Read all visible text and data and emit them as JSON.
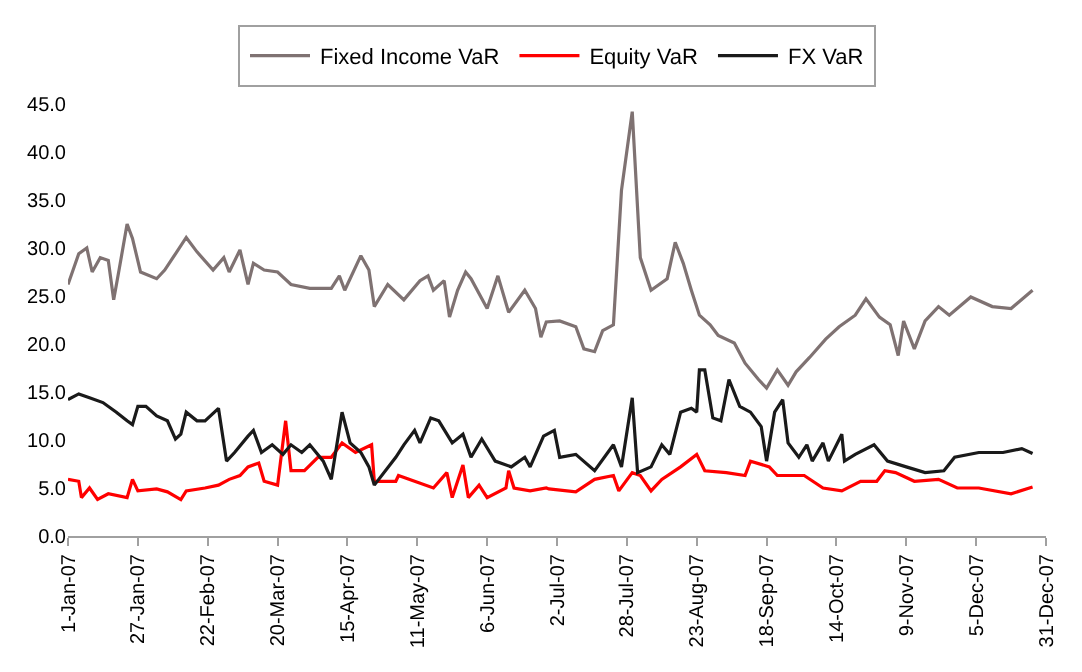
{
  "chart_data": {
    "type": "line",
    "legend": "top",
    "marker": "none",
    "line_style": "solid",
    "xlim": [
      "2007-01-01",
      "2007-12-31"
    ],
    "xticks": [
      {
        "value": "2007-01-01",
        "label": "1-Jan-07"
      },
      {
        "value": "2007-01-27",
        "label": "27-Jan-07"
      },
      {
        "value": "2007-02-22",
        "label": "22-Feb-07"
      },
      {
        "value": "2007-03-20",
        "label": "20-Mar-07"
      },
      {
        "value": "2007-04-15",
        "label": "15-Apr-07"
      },
      {
        "value": "2007-05-11",
        "label": "11-May-07"
      },
      {
        "value": "2007-06-06",
        "label": "6-Jun-07"
      },
      {
        "value": "2007-07-02",
        "label": "2-Jul-07"
      },
      {
        "value": "2007-07-28",
        "label": "28-Jul-07"
      },
      {
        "value": "2007-08-23",
        "label": "23-Aug-07"
      },
      {
        "value": "2007-09-18",
        "label": "18-Sep-07"
      },
      {
        "value": "2007-10-14",
        "label": "14-Oct-07"
      },
      {
        "value": "2007-11-09",
        "label": "9-Nov-07"
      },
      {
        "value": "2007-12-05",
        "label": "5-Dec-07"
      },
      {
        "value": "2007-12-31",
        "label": "31-Dec-07"
      }
    ],
    "ylim": [
      0,
      45
    ],
    "yticks": [
      {
        "value": 0,
        "label": "0.0"
      },
      {
        "value": 5,
        "label": "5.0"
      },
      {
        "value": 10,
        "label": "10.0"
      },
      {
        "value": 15,
        "label": "15.0"
      },
      {
        "value": 20,
        "label": "20.0"
      },
      {
        "value": 25,
        "label": "25.0"
      },
      {
        "value": 30,
        "label": "30.0"
      },
      {
        "value": 35,
        "label": "35.0"
      },
      {
        "value": 40,
        "label": "40.0"
      },
      {
        "value": 45,
        "label": "45.0"
      }
    ],
    "series": [
      {
        "name": "Fixed Income VaR",
        "color": "#7f7272",
        "x": [
          "2007-01-01",
          "2007-01-05",
          "2007-01-08",
          "2007-01-10",
          "2007-01-13",
          "2007-01-16",
          "2007-01-18",
          "2007-01-20",
          "2007-01-23",
          "2007-01-25",
          "2007-01-28",
          "2007-02-03",
          "2007-02-06",
          "2007-02-10",
          "2007-02-14",
          "2007-02-18",
          "2007-02-24",
          "2007-02-28",
          "2007-03-02",
          "2007-03-06",
          "2007-03-09",
          "2007-03-11",
          "2007-03-15",
          "2007-03-20",
          "2007-03-25",
          "2007-04-01",
          "2007-04-09",
          "2007-04-12",
          "2007-04-14",
          "2007-04-20",
          "2007-04-23",
          "2007-04-25",
          "2007-04-30",
          "2007-05-06",
          "2007-05-12",
          "2007-05-15",
          "2007-05-17",
          "2007-05-21",
          "2007-05-23",
          "2007-05-26",
          "2007-05-29",
          "2007-05-31",
          "2007-06-06",
          "2007-06-10",
          "2007-06-14",
          "2007-06-20",
          "2007-06-24",
          "2007-06-26",
          "2007-06-28",
          "2007-07-03",
          "2007-07-09",
          "2007-07-12",
          "2007-07-16",
          "2007-07-19",
          "2007-07-23",
          "2007-07-26",
          "2007-07-30",
          "2007-08-02",
          "2007-08-06",
          "2007-08-12",
          "2007-08-15",
          "2007-08-18",
          "2007-08-21",
          "2007-08-24",
          "2007-08-28",
          "2007-08-31",
          "2007-09-06",
          "2007-09-10",
          "2007-09-15",
          "2007-09-18",
          "2007-09-22",
          "2007-09-26",
          "2007-09-29",
          "2007-10-04",
          "2007-10-10",
          "2007-10-15",
          "2007-10-21",
          "2007-10-25",
          "2007-10-30",
          "2007-11-03",
          "2007-11-06",
          "2007-11-08",
          "2007-11-12",
          "2007-11-16",
          "2007-11-21",
          "2007-11-25",
          "2007-12-03",
          "2007-12-11",
          "2007-12-18",
          "2007-12-26"
        ],
        "values": [
          26.2,
          29.4,
          30.0,
          27.5,
          29.0,
          28.7,
          24.6,
          27.7,
          32.5,
          31.0,
          27.5,
          26.8,
          27.7,
          29.4,
          31.1,
          29.6,
          27.7,
          29.0,
          27.5,
          29.8,
          26.2,
          28.4,
          27.7,
          27.5,
          26.2,
          25.8,
          25.8,
          27.1,
          25.6,
          29.2,
          27.7,
          23.9,
          26.2,
          24.6,
          26.6,
          27.1,
          25.6,
          26.6,
          22.8,
          25.6,
          27.5,
          26.8,
          23.7,
          27.1,
          23.3,
          25.6,
          23.7,
          20.7,
          22.3,
          22.4,
          21.8,
          19.5,
          19.2,
          21.4,
          22.0,
          36.0,
          44.2,
          29.0,
          25.6,
          26.8,
          30.6,
          28.4,
          25.6,
          23.0,
          22.0,
          20.9,
          20.1,
          18.0,
          16.3,
          15.4,
          17.3,
          15.7,
          17.1,
          18.6,
          20.5,
          21.8,
          23.0,
          24.7,
          22.8,
          22.0,
          18.8,
          22.4,
          19.5,
          22.4,
          23.9,
          23.0,
          24.9,
          23.9,
          23.7,
          25.6
        ]
      },
      {
        "name": "Equity VaR",
        "color": "#ff0000",
        "x": [
          "2007-01-01",
          "2007-01-05",
          "2007-01-06",
          "2007-01-09",
          "2007-01-12",
          "2007-01-16",
          "2007-01-23",
          "2007-01-25",
          "2007-01-27",
          "2007-02-03",
          "2007-02-07",
          "2007-02-12",
          "2007-02-14",
          "2007-02-21",
          "2007-02-26",
          "2007-03-02",
          "2007-03-06",
          "2007-03-09",
          "2007-03-13",
          "2007-03-15",
          "2007-03-20",
          "2007-03-23",
          "2007-03-25",
          "2007-03-30",
          "2007-04-04",
          "2007-04-09",
          "2007-04-13",
          "2007-04-18",
          "2007-04-24",
          "2007-04-25",
          "2007-05-03",
          "2007-05-04",
          "2007-05-10",
          "2007-05-17",
          "2007-05-22",
          "2007-05-24",
          "2007-05-28",
          "2007-05-30",
          "2007-06-03",
          "2007-06-06",
          "2007-06-13",
          "2007-06-14",
          "2007-06-16",
          "2007-06-22",
          "2007-06-28",
          "2007-06-29",
          "2007-07-09",
          "2007-07-16",
          "2007-07-23",
          "2007-07-25",
          "2007-07-30",
          "2007-08-02",
          "2007-08-06",
          "2007-08-10",
          "2007-08-17",
          "2007-08-23",
          "2007-08-26",
          "2007-09-03",
          "2007-09-10",
          "2007-09-12",
          "2007-09-19",
          "2007-09-22",
          "2007-10-02",
          "2007-10-09",
          "2007-10-16",
          "2007-10-23",
          "2007-10-29",
          "2007-11-01",
          "2007-11-05",
          "2007-11-12",
          "2007-11-21",
          "2007-11-28",
          "2007-12-06",
          "2007-12-18",
          "2007-12-26"
        ],
        "values": [
          5.9,
          5.7,
          4.0,
          5.0,
          3.8,
          4.4,
          4.0,
          5.9,
          4.7,
          4.9,
          4.6,
          3.8,
          4.7,
          5.0,
          5.3,
          5.9,
          6.3,
          7.2,
          7.6,
          5.7,
          5.3,
          12.0,
          6.8,
          6.8,
          8.2,
          8.2,
          9.7,
          8.7,
          9.5,
          5.7,
          5.7,
          6.3,
          5.7,
          5.0,
          6.6,
          4.0,
          7.4,
          4.0,
          5.3,
          4.0,
          5.0,
          6.8,
          5.0,
          4.7,
          5.0,
          4.9,
          4.6,
          5.9,
          6.3,
          4.7,
          6.6,
          6.3,
          4.7,
          5.9,
          7.2,
          8.5,
          6.8,
          6.6,
          6.3,
          7.8,
          7.2,
          6.3,
          6.3,
          5.0,
          4.7,
          5.7,
          5.7,
          6.8,
          6.6,
          5.7,
          5.9,
          5.0,
          5.0,
          4.4,
          5.1
        ]
      },
      {
        "name": "FX VaR",
        "color": "#1a1a1a",
        "x": [
          "2007-01-01",
          "2007-01-05",
          "2007-01-09",
          "2007-01-14",
          "2007-01-19",
          "2007-01-23",
          "2007-01-25",
          "2007-01-27",
          "2007-01-30",
          "2007-02-03",
          "2007-02-07",
          "2007-02-10",
          "2007-02-12",
          "2007-02-14",
          "2007-02-18",
          "2007-02-21",
          "2007-02-26",
          "2007-03-01",
          "2007-03-04",
          "2007-03-09",
          "2007-03-11",
          "2007-03-14",
          "2007-03-18",
          "2007-03-22",
          "2007-03-25",
          "2007-03-29",
          "2007-04-01",
          "2007-04-06",
          "2007-04-09",
          "2007-04-13",
          "2007-04-16",
          "2007-04-20",
          "2007-04-23",
          "2007-04-25",
          "2007-05-03",
          "2007-05-06",
          "2007-05-10",
          "2007-05-12",
          "2007-05-16",
          "2007-05-19",
          "2007-05-24",
          "2007-05-28",
          "2007-05-31",
          "2007-06-04",
          "2007-06-09",
          "2007-06-15",
          "2007-06-20",
          "2007-06-22",
          "2007-06-27",
          "2007-07-01",
          "2007-07-03",
          "2007-07-09",
          "2007-07-16",
          "2007-07-23",
          "2007-07-26",
          "2007-07-30",
          "2007-08-01",
          "2007-08-06",
          "2007-08-10",
          "2007-08-13",
          "2007-08-17",
          "2007-08-21",
          "2007-08-23",
          "2007-08-24",
          "2007-08-26",
          "2007-08-29",
          "2007-09-01",
          "2007-09-04",
          "2007-09-08",
          "2007-09-12",
          "2007-09-16",
          "2007-09-18",
          "2007-09-21",
          "2007-09-24",
          "2007-09-26",
          "2007-09-30",
          "2007-10-03",
          "2007-10-05",
          "2007-10-09",
          "2007-10-11",
          "2007-10-16",
          "2007-10-17",
          "2007-10-21",
          "2007-10-28",
          "2007-11-02",
          "2007-11-09",
          "2007-11-16",
          "2007-11-23",
          "2007-11-27",
          "2007-12-06",
          "2007-12-15",
          "2007-12-22",
          "2007-12-26"
        ],
        "values": [
          14.2,
          14.8,
          14.4,
          13.9,
          12.9,
          12.0,
          11.6,
          13.5,
          13.5,
          12.5,
          12.0,
          10.1,
          10.6,
          12.9,
          12.0,
          12.0,
          13.3,
          7.8,
          8.7,
          10.4,
          11.0,
          8.7,
          9.5,
          8.5,
          9.5,
          8.7,
          9.5,
          7.8,
          5.9,
          12.9,
          9.7,
          8.7,
          7.2,
          5.3,
          8.2,
          9.5,
          11.0,
          9.7,
          12.3,
          12.0,
          9.7,
          10.6,
          8.2,
          10.1,
          7.8,
          7.2,
          8.2,
          7.2,
          10.4,
          11.0,
          8.2,
          8.5,
          6.8,
          9.5,
          7.2,
          14.4,
          6.6,
          7.2,
          9.5,
          8.5,
          12.9,
          13.3,
          12.9,
          17.3,
          17.3,
          12.3,
          12.0,
          16.3,
          13.5,
          12.9,
          11.4,
          7.8,
          12.9,
          14.2,
          9.7,
          8.2,
          9.5,
          7.8,
          9.7,
          7.8,
          10.6,
          7.8,
          8.5,
          9.5,
          7.8,
          7.2,
          6.6,
          6.8,
          8.2,
          8.7,
          8.7,
          9.1,
          8.6
        ]
      }
    ]
  }
}
